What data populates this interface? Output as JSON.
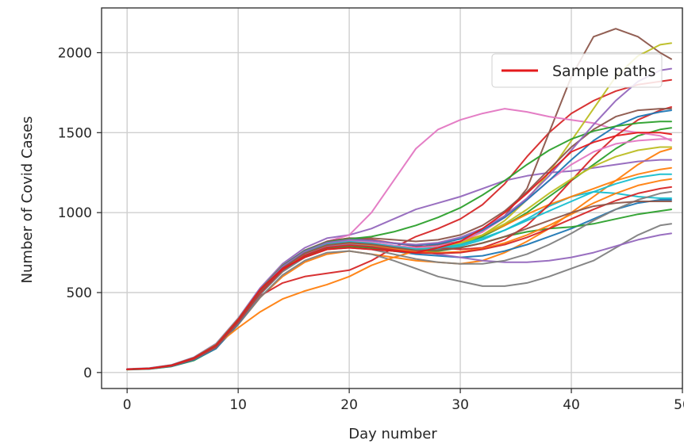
{
  "chart_data": {
    "type": "line",
    "title": "",
    "xlabel": "Day number",
    "ylabel": "Number of Covid Cases",
    "xlim": [
      -2.3,
      50
    ],
    "ylim": [
      -100,
      2280
    ],
    "xticks": [
      0,
      10,
      20,
      30,
      40,
      50
    ],
    "yticks": [
      0,
      500,
      1000,
      1500,
      2000
    ],
    "grid": true,
    "legend": {
      "label": "Sample paths",
      "placement": "top-right",
      "color": "#e41a1c"
    },
    "color_cycle": [
      "#1f77b4",
      "#ff7f0e",
      "#2ca02c",
      "#d62728",
      "#9467bd",
      "#8c564b",
      "#e377c2",
      "#7f7f7f",
      "#bcbd22",
      "#17becf"
    ],
    "highlight_color": "#e41a1c",
    "x": [
      0,
      2,
      4,
      6,
      8,
      10,
      12,
      14,
      16,
      18,
      20,
      22,
      24,
      26,
      28,
      30,
      32,
      34,
      36,
      38,
      40,
      42,
      44,
      46,
      48,
      49
    ],
    "series": [
      {
        "values": [
          20,
          25,
          45,
          90,
          170,
          330,
          520,
          650,
          720,
          770,
          780,
          770,
          760,
          750,
          780,
          820,
          900,
          1000,
          1120,
          1250,
          1380,
          1440,
          1480,
          1500,
          1500,
          1490
        ]
      },
      {
        "values": [
          20,
          24,
          40,
          80,
          155,
          300,
          470,
          600,
          690,
          740,
          760,
          740,
          720,
          700,
          690,
          680,
          700,
          750,
          820,
          900,
          1000,
          1100,
          1200,
          1300,
          1380,
          1400
        ]
      },
      {
        "values": [
          18,
          22,
          38,
          75,
          150,
          310,
          500,
          640,
          730,
          790,
          810,
          800,
          780,
          760,
          770,
          800,
          850,
          920,
          1000,
          1100,
          1200,
          1300,
          1400,
          1480,
          1520,
          1530
        ]
      },
      {
        "values": [
          20,
          26,
          44,
          85,
          165,
          320,
          480,
          560,
          600,
          620,
          640,
          700,
          780,
          850,
          900,
          960,
          1050,
          1180,
          1350,
          1500,
          1620,
          1700,
          1760,
          1800,
          1820,
          1830
        ]
      },
      {
        "values": [
          22,
          28,
          48,
          95,
          180,
          340,
          530,
          680,
          780,
          840,
          860,
          900,
          960,
          1020,
          1060,
          1100,
          1150,
          1200,
          1230,
          1250,
          1260,
          1280,
          1300,
          1320,
          1330,
          1330
        ]
      },
      {
        "values": [
          20,
          24,
          42,
          88,
          160,
          315,
          500,
          650,
          750,
          800,
          820,
          810,
          790,
          780,
          800,
          820,
          880,
          980,
          1150,
          1500,
          1850,
          2100,
          2150,
          2100,
          2000,
          1960
        ]
      },
      {
        "values": [
          20,
          25,
          43,
          86,
          162,
          318,
          505,
          655,
          760,
          820,
          860,
          1000,
          1200,
          1400,
          1520,
          1580,
          1620,
          1650,
          1630,
          1600,
          1580,
          1560,
          1520,
          1500,
          1480,
          1450
        ]
      },
      {
        "values": [
          20,
          24,
          40,
          82,
          150,
          300,
          470,
          610,
          700,
          750,
          760,
          740,
          700,
          650,
          600,
          570,
          540,
          540,
          560,
          600,
          650,
          700,
          780,
          860,
          920,
          930
        ]
      },
      {
        "values": [
          21,
          26,
          46,
          92,
          175,
          335,
          520,
          670,
          760,
          810,
          820,
          800,
          780,
          770,
          780,
          800,
          860,
          950,
          1080,
          1250,
          1450,
          1650,
          1850,
          1980,
          2050,
          2060
        ]
      },
      {
        "values": [
          20,
          25,
          44,
          88,
          168,
          326,
          515,
          660,
          745,
          795,
          805,
          790,
          770,
          760,
          770,
          790,
          830,
          890,
          960,
          1040,
          1100,
          1130,
          1120,
          1100,
          1090,
          1090
        ]
      },
      {
        "values": [
          19,
          23,
          39,
          78,
          150,
          305,
          490,
          635,
          725,
          775,
          790,
          780,
          760,
          740,
          730,
          720,
          730,
          760,
          800,
          850,
          900,
          960,
          1020,
          1060,
          1080,
          1080
        ]
      },
      {
        "values": [
          20,
          25,
          45,
          90,
          170,
          280,
          380,
          460,
          510,
          550,
          600,
          670,
          720,
          760,
          790,
          820,
          860,
          920,
          990,
          1050,
          1100,
          1150,
          1200,
          1240,
          1270,
          1280
        ]
      },
      {
        "values": [
          20,
          24,
          42,
          85,
          165,
          320,
          500,
          640,
          730,
          780,
          790,
          780,
          760,
          750,
          760,
          780,
          810,
          850,
          880,
          900,
          910,
          930,
          960,
          990,
          1010,
          1020
        ]
      },
      {
        "values": [
          20,
          25,
          44,
          90,
          170,
          330,
          515,
          660,
          760,
          820,
          840,
          830,
          810,
          790,
          780,
          770,
          780,
          830,
          920,
          1050,
          1200,
          1350,
          1480,
          1580,
          1640,
          1660
        ]
      },
      {
        "values": [
          20,
          25,
          43,
          87,
          163,
          322,
          508,
          648,
          740,
          790,
          805,
          800,
          780,
          760,
          740,
          720,
          700,
          690,
          690,
          700,
          720,
          750,
          790,
          830,
          860,
          870
        ]
      },
      {
        "values": [
          20,
          26,
          46,
          91,
          172,
          332,
          520,
          668,
          765,
          820,
          840,
          840,
          830,
          820,
          830,
          860,
          920,
          1010,
          1130,
          1270,
          1410,
          1520,
          1600,
          1640,
          1650,
          1650
        ]
      },
      {
        "values": [
          20,
          25,
          44,
          89,
          168,
          328,
          512,
          660,
          755,
          808,
          825,
          815,
          795,
          780,
          790,
          820,
          880,
          970,
          1080,
          1200,
          1300,
          1380,
          1430,
          1450,
          1460,
          1460
        ]
      },
      {
        "values": [
          20,
          24,
          41,
          83,
          157,
          310,
          490,
          630,
          720,
          770,
          780,
          770,
          740,
          710,
          690,
          680,
          680,
          700,
          740,
          800,
          870,
          950,
          1020,
          1080,
          1120,
          1130
        ]
      },
      {
        "values": [
          20,
          25,
          43,
          87,
          165,
          325,
          510,
          655,
          750,
          800,
          815,
          805,
          785,
          770,
          780,
          810,
          860,
          930,
          1020,
          1120,
          1210,
          1290,
          1350,
          1390,
          1410,
          1410
        ]
      },
      {
        "values": [
          20,
          25,
          44,
          88,
          166,
          326,
          512,
          658,
          752,
          803,
          818,
          808,
          788,
          772,
          778,
          800,
          840,
          890,
          950,
          1010,
          1070,
          1130,
          1180,
          1220,
          1240,
          1240
        ]
      },
      {
        "values": [
          20,
          26,
          45,
          90,
          171,
          331,
          518,
          666,
          762,
          815,
          833,
          825,
          808,
          795,
          805,
          835,
          890,
          970,
          1080,
          1200,
          1330,
          1450,
          1540,
          1600,
          1630,
          1640
        ]
      },
      {
        "values": [
          20,
          25,
          43,
          86,
          163,
          321,
          506,
          650,
          745,
          796,
          810,
          798,
          775,
          755,
          750,
          755,
          775,
          810,
          860,
          920,
          990,
          1060,
          1120,
          1170,
          1200,
          1210
        ]
      },
      {
        "values": [
          20,
          25,
          45,
          90,
          170,
          330,
          518,
          665,
          760,
          815,
          835,
          850,
          880,
          920,
          970,
          1030,
          1110,
          1200,
          1300,
          1390,
          1460,
          1510,
          1540,
          1560,
          1570,
          1570
        ]
      },
      {
        "values": [
          20,
          24,
          42,
          84,
          160,
          315,
          498,
          640,
          732,
          782,
          796,
          786,
          766,
          748,
          745,
          750,
          770,
          800,
          845,
          900,
          960,
          1020,
          1075,
          1120,
          1150,
          1160
        ]
      },
      {
        "values": [
          20,
          25,
          44,
          89,
          169,
          329,
          516,
          663,
          758,
          812,
          830,
          824,
          810,
          800,
          812,
          845,
          900,
          980,
          1090,
          1230,
          1390,
          1550,
          1700,
          1820,
          1890,
          1900
        ]
      },
      {
        "values": [
          20,
          25,
          43,
          87,
          164,
          323,
          508,
          652,
          746,
          797,
          812,
          802,
          782,
          764,
          765,
          780,
          810,
          850,
          900,
          950,
          1000,
          1040,
          1060,
          1070,
          1070,
          1070
        ]
      }
    ]
  }
}
